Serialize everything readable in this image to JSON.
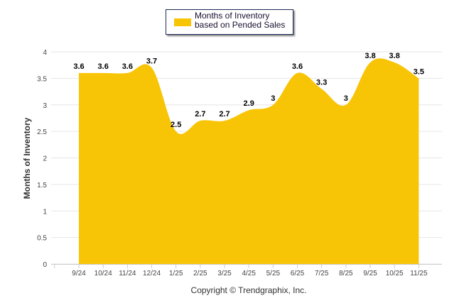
{
  "chart_data": {
    "type": "area",
    "title": "",
    "legend": {
      "label": "Months of Inventory based on Pended Sales",
      "position": "top-center"
    },
    "categories": [
      "9/24",
      "10/24",
      "11/24",
      "12/24",
      "1/25",
      "2/25",
      "3/25",
      "4/25",
      "5/25",
      "6/25",
      "7/25",
      "8/25",
      "9/25",
      "10/25",
      "11/25"
    ],
    "series": [
      {
        "name": "Months of Inventory based on Pended Sales",
        "values": [
          3.6,
          3.6,
          3.6,
          3.7,
          2.5,
          2.7,
          2.7,
          2.9,
          3,
          3.6,
          3.3,
          3,
          3.8,
          3.8,
          3.5
        ],
        "color": "#f8c406"
      }
    ],
    "data_labels": [
      "3.6",
      "3.6",
      "3.6",
      "3.7",
      "2.5",
      "2.7",
      "2.7",
      "2.9",
      "3",
      "3.6",
      "3.3",
      "3",
      "3.8",
      "3.8",
      "3.5"
    ],
    "ylabel": "Months of Inventory",
    "xlabel": "",
    "ylim": [
      0,
      4
    ],
    "yticks": [
      "0",
      "0.5",
      "1",
      "1.5",
      "2",
      "2.5",
      "3",
      "3.5",
      "4"
    ],
    "grid": true
  },
  "footer": {
    "copyright": "Copyright © Trendgraphix, Inc."
  }
}
